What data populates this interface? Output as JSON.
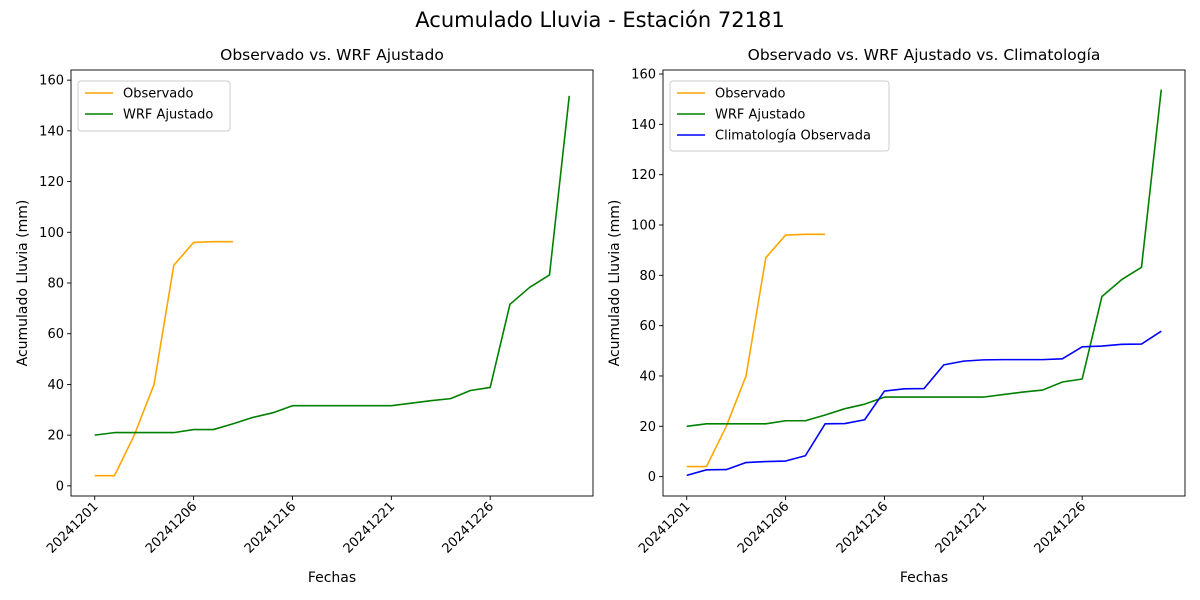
{
  "suptitle": "Acumulado Lluvia - Estación 72181",
  "colors": {
    "observado": "#ffa500",
    "wrf": "#008000",
    "climatologia": "#0000ff"
  },
  "chart_data": [
    {
      "type": "line",
      "title": "Observado vs. WRF Ajustado",
      "xlabel": "Fechas",
      "ylabel": "Acumulado Lluvia (mm)",
      "x_tick_labels": [
        "20241201",
        "20241206",
        "20241216",
        "20241221",
        "20241226"
      ],
      "y_ticks": [
        0,
        20,
        40,
        60,
        80,
        100,
        120,
        140,
        160
      ],
      "ylim": [
        -4,
        164
      ],
      "legend_position": "upper left",
      "series": [
        {
          "name": "Observado",
          "color": "#ffa500",
          "values": [
            4,
            4,
            20,
            40,
            87,
            96,
            96.3,
            96.3
          ]
        },
        {
          "name": "WRF Ajustado",
          "color": "#008000",
          "values": [
            20,
            21,
            21,
            21,
            21,
            22.2,
            22.2,
            24.5,
            27,
            28.8,
            31.6,
            31.6,
            31.6,
            31.6,
            31.6,
            31.6,
            32.6,
            33.6,
            34.4,
            37.6,
            38.8,
            71.6,
            78.3,
            83.2,
            153.8
          ]
        }
      ]
    },
    {
      "type": "line",
      "title": "Observado vs. WRF Ajustado vs. Climatología",
      "xlabel": "Fechas",
      "ylabel": "Acumulado Lluvia (mm)",
      "x_tick_labels": [
        "20241201",
        "20241206",
        "20241216",
        "20241221",
        "20241226"
      ],
      "y_ticks": [
        0,
        20,
        40,
        60,
        80,
        100,
        120,
        140,
        160
      ],
      "ylim": [
        -7.7,
        161.6
      ],
      "legend_position": "upper left",
      "series": [
        {
          "name": "Observado",
          "color": "#ffa500",
          "values": [
            4,
            4,
            20,
            40,
            87,
            96,
            96.3,
            96.3
          ]
        },
        {
          "name": "WRF Ajustado",
          "color": "#008000",
          "values": [
            20,
            21,
            21,
            21,
            21,
            22.2,
            22.2,
            24.5,
            27,
            28.8,
            31.6,
            31.6,
            31.6,
            31.6,
            31.6,
            31.6,
            32.6,
            33.6,
            34.4,
            37.6,
            38.8,
            71.6,
            78.3,
            83.2,
            153.8
          ]
        },
        {
          "name": "Climatología Observada",
          "color": "#0000ff",
          "values": [
            0.5,
            2.7,
            2.8,
            5.6,
            6,
            6.2,
            8.3,
            21,
            21.1,
            22.6,
            34,
            34.9,
            35,
            44.4,
            45.9,
            46.4,
            46.5,
            46.5,
            46.5,
            46.8,
            51.6,
            51.9,
            52.6,
            52.7,
            57.8
          ]
        }
      ]
    }
  ]
}
